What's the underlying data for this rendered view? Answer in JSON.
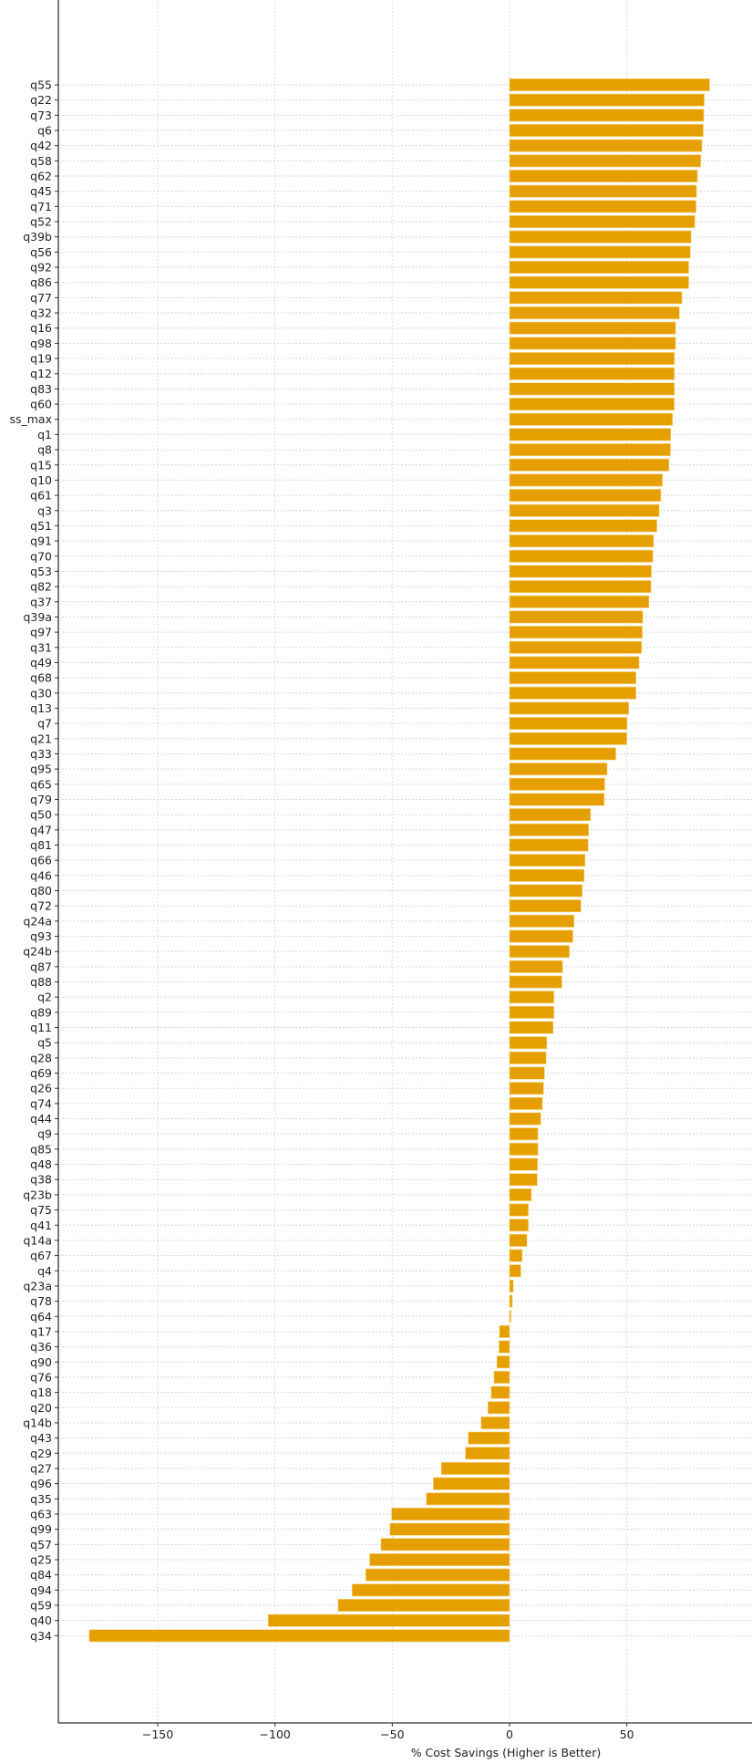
{
  "chart_data": {
    "type": "bar",
    "orientation": "horizontal",
    "title": "",
    "xlabel": "% Cost Savings (Higher is Better)",
    "ylabel": "",
    "xlim": [
      -193,
      103
    ],
    "xticks": [
      -150,
      -100,
      -50,
      0,
      50
    ],
    "xtick_labels": [
      "−150",
      "−100",
      "−50",
      "0",
      "50"
    ],
    "grid": true,
    "bar_color": "#E69F00",
    "categories": [
      "q55",
      "q22",
      "q73",
      "q6",
      "q42",
      "q58",
      "q62",
      "q45",
      "q71",
      "q52",
      "q39b",
      "q56",
      "q92",
      "q86",
      "q77",
      "q32",
      "q16",
      "q98",
      "q19",
      "q12",
      "q83",
      "q60",
      "ss_max",
      "q1",
      "q8",
      "q15",
      "q10",
      "q61",
      "q3",
      "q51",
      "q91",
      "q70",
      "q53",
      "q82",
      "q37",
      "q39a",
      "q97",
      "q31",
      "q49",
      "q68",
      "q30",
      "q13",
      "q7",
      "q21",
      "q33",
      "q95",
      "q65",
      "q79",
      "q50",
      "q47",
      "q81",
      "q66",
      "q46",
      "q80",
      "q72",
      "q24a",
      "q93",
      "q24b",
      "q87",
      "q88",
      "q2",
      "q89",
      "q11",
      "q5",
      "q28",
      "q69",
      "q26",
      "q74",
      "q44",
      "q9",
      "q85",
      "q48",
      "q38",
      "q23b",
      "q75",
      "q41",
      "q14a",
      "q67",
      "q4",
      "q23a",
      "q78",
      "q64",
      "q17",
      "q36",
      "q90",
      "q76",
      "q18",
      "q20",
      "q14b",
      "q43",
      "q29",
      "q27",
      "q96",
      "q35",
      "q63",
      "q99",
      "q57",
      "q25",
      "q84",
      "q94",
      "q59",
      "q40",
      "q34"
    ],
    "values": [
      85.3,
      83.0,
      82.8,
      82.6,
      82.0,
      81.5,
      80.1,
      79.7,
      79.5,
      79.0,
      77.4,
      77.1,
      76.4,
      76.4,
      73.5,
      72.4,
      70.8,
      70.8,
      70.3,
      70.3,
      70.3,
      70.2,
      69.5,
      68.7,
      68.6,
      68.0,
      65.2,
      64.5,
      63.8,
      62.8,
      61.4,
      61.1,
      60.5,
      60.3,
      59.4,
      56.8,
      56.6,
      56.3,
      55.2,
      53.9,
      53.9,
      50.8,
      50.1,
      50.0,
      45.3,
      41.6,
      40.6,
      40.4,
      34.5,
      33.7,
      33.5,
      32.2,
      31.8,
      31.0,
      30.4,
      27.5,
      27.0,
      25.5,
      22.6,
      22.3,
      18.9,
      18.9,
      18.6,
      15.9,
      15.6,
      14.9,
      14.5,
      14.0,
      13.3,
      12.1,
      12.1,
      11.9,
      11.8,
      9.3,
      8.0,
      8.0,
      7.4,
      5.4,
      4.8,
      1.6,
      1.2,
      0.6,
      -4.3,
      -4.5,
      -5.4,
      -6.6,
      -7.8,
      -9.2,
      -12.1,
      -17.6,
      -18.8,
      -29.1,
      -32.5,
      -35.5,
      -50.3,
      -51.0,
      -54.8,
      -59.6,
      -61.3,
      -67.1,
      -73.1,
      -102.9,
      -179.2
    ]
  }
}
